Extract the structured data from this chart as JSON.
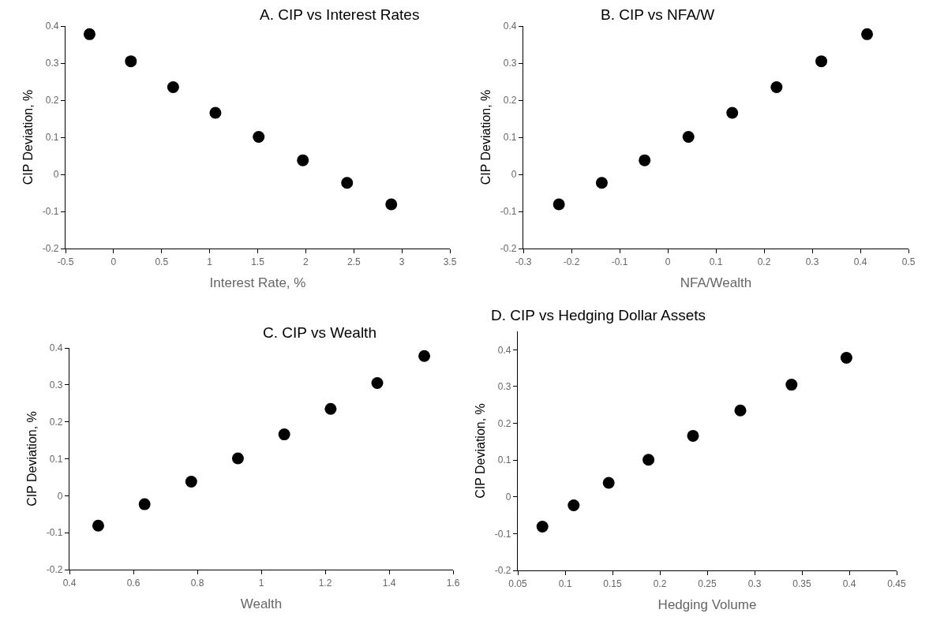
{
  "chart_data": [
    {
      "type": "scatter",
      "title": "A. CIP vs Interest Rates",
      "xlabel": "Interest Rate, %",
      "ylabel": "CIP Deviation, %",
      "marker": "circle",
      "color": "#000000",
      "x": [
        -0.25,
        0.18,
        0.62,
        1.06,
        1.51,
        1.97,
        2.43,
        2.89
      ],
      "values": [
        0.378,
        0.305,
        0.235,
        0.166,
        0.101,
        0.038,
        -0.023,
        -0.081
      ],
      "xlim": [
        -0.5,
        3.5
      ],
      "xticks": [
        -0.5,
        0,
        0.5,
        1,
        1.5,
        2,
        2.5,
        3,
        3.5
      ],
      "ylim": [
        -0.2,
        0.4
      ],
      "yticks": [
        -0.2,
        -0.1,
        0,
        0.1,
        0.2,
        0.3,
        0.4
      ]
    },
    {
      "type": "scatter",
      "title": "B. CIP vs NFA/W",
      "xlabel": "NFA/Wealth",
      "ylabel": "CIP Deviation, %",
      "marker": "circle",
      "color": "#000000",
      "x": [
        -0.226,
        -0.137,
        -0.048,
        0.043,
        0.134,
        0.226,
        0.319,
        0.414
      ],
      "values": [
        -0.081,
        -0.023,
        0.038,
        0.101,
        0.166,
        0.235,
        0.305,
        0.378
      ],
      "xlim": [
        -0.3,
        0.5
      ],
      "xticks": [
        -0.3,
        -0.2,
        -0.1,
        0,
        0.1,
        0.2,
        0.3,
        0.4,
        0.5
      ],
      "ylim": [
        -0.2,
        0.4
      ],
      "yticks": [
        -0.2,
        -0.1,
        0,
        0.1,
        0.2,
        0.3,
        0.4
      ]
    },
    {
      "type": "scatter",
      "title": "C. CIP vs Wealth",
      "xlabel": "Wealth",
      "ylabel": "CIP Deviation, %",
      "marker": "circle",
      "color": "#000000",
      "x": [
        0.49,
        0.635,
        0.781,
        0.927,
        1.072,
        1.217,
        1.363,
        1.51
      ],
      "values": [
        -0.081,
        -0.023,
        0.038,
        0.101,
        0.166,
        0.235,
        0.305,
        0.378
      ],
      "xlim": [
        0.4,
        1.6
      ],
      "xticks": [
        0.4,
        0.6,
        0.8,
        1,
        1.2,
        1.4,
        1.6
      ],
      "ylim": [
        -0.2,
        0.4
      ],
      "yticks": [
        -0.2,
        -0.1,
        0,
        0.1,
        0.2,
        0.3,
        0.4
      ]
    },
    {
      "type": "scatter",
      "title": "D. CIP vs Hedging Dollar Assets",
      "xlabel": "Hedging Volume",
      "ylabel": "CIP Deviation, %",
      "marker": "circle",
      "color": "#000000",
      "x": [
        0.076,
        0.109,
        0.146,
        0.188,
        0.235,
        0.285,
        0.339,
        0.397
      ],
      "values": [
        -0.081,
        -0.023,
        0.038,
        0.101,
        0.166,
        0.235,
        0.305,
        0.378
      ],
      "xlim": [
        0.05,
        0.45
      ],
      "xticks": [
        0.05,
        0.1,
        0.15,
        0.2,
        0.25,
        0.3,
        0.35,
        0.4,
        0.45
      ],
      "ylim": [
        -0.2,
        0.45
      ],
      "yticks": [
        -0.2,
        -0.1,
        0,
        0.1,
        0.2,
        0.3,
        0.4
      ]
    }
  ]
}
